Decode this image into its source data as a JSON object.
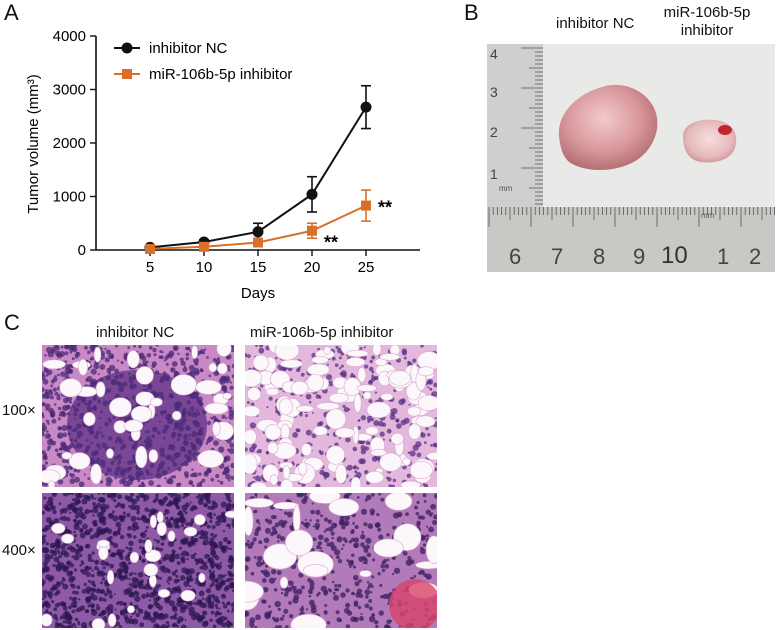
{
  "panels": {
    "a": {
      "letter": "A"
    },
    "b": {
      "letter": "B",
      "col1": "inhibitor NC",
      "col2_line1": "miR-106b-5p",
      "col2_line2": "inhibitor",
      "ruler_vertical": [
        "4",
        "3",
        "2",
        "1"
      ],
      "ruler_horizontal": [
        "6",
        "7",
        "8",
        "9",
        "10",
        "1",
        "2"
      ],
      "ruler_unit": "mm"
    },
    "c": {
      "letter": "C",
      "col1": "inhibitor NC",
      "col2": "miR-106b-5p inhibitor",
      "row1": "100×",
      "row2": "400×"
    }
  },
  "chart_data": {
    "type": "line",
    "xlabel": "Days",
    "ylabel": "Tumor volume (mm³)",
    "x": [
      5,
      10,
      15,
      20,
      25
    ],
    "xlim": [
      0,
      30
    ],
    "ylim": [
      0,
      4000
    ],
    "yticks": [
      0,
      1000,
      2000,
      3000,
      4000
    ],
    "legend_position": "top-left",
    "series": [
      {
        "name": "inhibitor NC",
        "color": "#111111",
        "marker": "circle",
        "values": [
          50,
          150,
          340,
          1040,
          2670
        ],
        "errors": [
          20,
          40,
          160,
          330,
          400
        ]
      },
      {
        "name": "miR-106b-5p inhibitor",
        "color": "#d9702a",
        "marker": "square",
        "values": [
          20,
          60,
          140,
          360,
          830
        ],
        "errors": [
          10,
          25,
          50,
          140,
          290
        ]
      }
    ],
    "annotations": [
      {
        "text": "**",
        "x": 20
      },
      {
        "text": "**",
        "x": 25
      }
    ]
  }
}
